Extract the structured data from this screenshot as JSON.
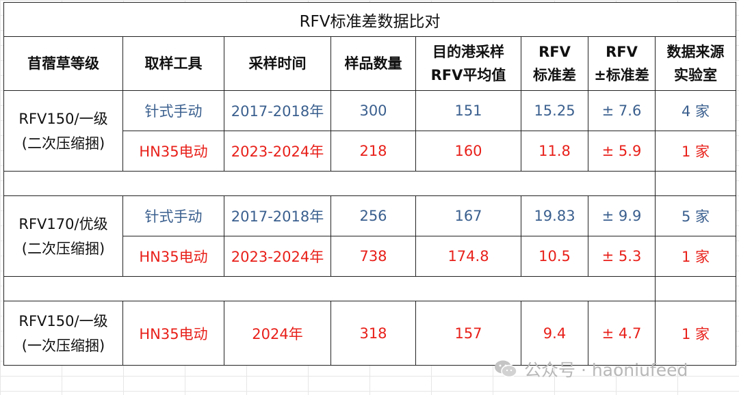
{
  "title": "RFV标准差数据比对",
  "headers": {
    "grade": "苜蓿草等级",
    "tool": "取样工具",
    "time": "采样时间",
    "count": "样品数量",
    "avg_line1": "目的港采样",
    "avg_line2": "RFV平均值",
    "sd_line1": "RFV",
    "sd_line2": "标准差",
    "pm_line1": "RFV",
    "pm_line2": "±标准差",
    "lab_line1": "数据来源",
    "lab_line2": "实验室"
  },
  "groups": [
    {
      "grade_line1": "RFV150/一级",
      "grade_line2": "(二次压缩捆)",
      "rows": [
        {
          "tool": "针式手动",
          "time": "2017-2018年",
          "count": "300",
          "avg": "151",
          "sd": "15.25",
          "pm": "± 7.6",
          "lab": "4 家",
          "color": "#3a5f8e"
        },
        {
          "tool": "HN35电动",
          "time": "2023-2024年",
          "count": "218",
          "avg": "160",
          "sd": "11.8",
          "pm": "± 5.9",
          "lab": "1 家",
          "color": "#e8201a"
        }
      ]
    },
    {
      "grade_line1": "RFV170/优级",
      "grade_line2": "(二次压缩捆)",
      "rows": [
        {
          "tool": "针式手动",
          "time": "2017-2018年",
          "count": "256",
          "avg": "167",
          "sd": "19.83",
          "pm": "± 9.9",
          "lab": "5 家",
          "color": "#3a5f8e"
        },
        {
          "tool": "HN35电动",
          "time": "2023-2024年",
          "count": "738",
          "avg": "174.8",
          "sd": "10.5",
          "pm": "± 5.3",
          "lab": "1 家",
          "color": "#e8201a"
        }
      ]
    },
    {
      "grade_line1": "RFV150/一级",
      "grade_line2": "(一次压缩捆)",
      "rows": [
        {
          "tool": "HN35电动",
          "time": "2024年",
          "count": "318",
          "avg": "157",
          "sd": "9.4",
          "pm": "± 4.7",
          "lab": "1 家",
          "color": "#e8201a"
        }
      ]
    }
  ],
  "watermark": {
    "text": "公众号 · haoniufeed",
    "icon": "wechat-icon"
  }
}
